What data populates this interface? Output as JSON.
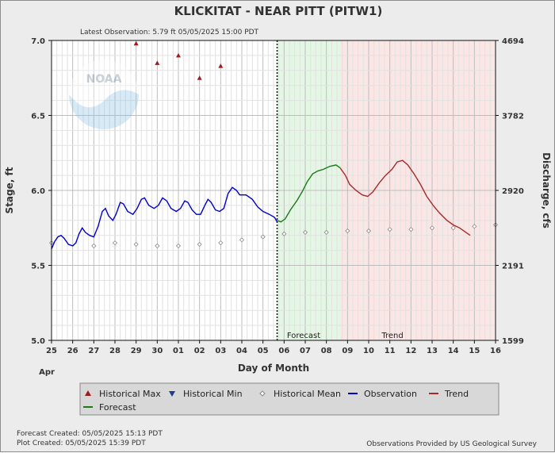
{
  "chart_data": {
    "type": "line",
    "title": "KLICKITAT - NEAR PITT  (PITW1)",
    "subtitle": "Latest Observation: 5.79 ft 05/05/2025 15:00 PDT",
    "xlabel": "Day of Month",
    "x_month_label": "Apr",
    "ylabel": "Stage, ft",
    "y2label": "Discharge, cfs",
    "ylim": [
      5.0,
      7.0
    ],
    "y_ticks": [
      "5.0",
      "5.5",
      "6.0",
      "6.5",
      "7.0"
    ],
    "y2_ticks": [
      "1599",
      "2191",
      "2920",
      "3782",
      "4694"
    ],
    "x_start_day": 25,
    "x_ticks": [
      "25",
      "26",
      "27",
      "28",
      "29",
      "30",
      "01",
      "02",
      "03",
      "04",
      "05",
      "06",
      "07",
      "08",
      "09",
      "10",
      "11",
      "12",
      "13",
      "14",
      "15",
      "16"
    ],
    "grid": true,
    "now_day": 5.67,
    "regions": [
      {
        "label": "Forecast",
        "start_day": 5.67,
        "end_day": 8.65,
        "color": "#e4f7e4"
      },
      {
        "label": "Trend",
        "start_day": 8.65,
        "end_day": 16.0,
        "color": "#fbe6e6"
      }
    ],
    "series": [
      {
        "name": "Historical Max",
        "kind": "marker-triangle-up",
        "color": "#9b1c1c",
        "points": [
          [
            4.0,
            6.98
          ],
          [
            5.0,
            6.85
          ],
          [
            6.0,
            6.9
          ],
          [
            7.0,
            6.75
          ],
          [
            8.0,
            6.83
          ]
        ]
      },
      {
        "name": "Historical Mean",
        "kind": "marker-diamond",
        "color": "#888888",
        "points": [
          [
            0.0,
            5.65
          ],
          [
            2.0,
            5.63
          ],
          [
            3.0,
            5.65
          ],
          [
            4.0,
            5.64
          ],
          [
            5.0,
            5.63
          ],
          [
            6.0,
            5.63
          ],
          [
            7.0,
            5.64
          ],
          [
            8.0,
            5.65
          ],
          [
            9.0,
            5.67
          ],
          [
            10.0,
            5.69
          ],
          [
            11.0,
            5.71
          ],
          [
            12.0,
            5.72
          ],
          [
            13.0,
            5.72
          ],
          [
            14.0,
            5.73
          ],
          [
            15.0,
            5.73
          ],
          [
            16.0,
            5.74
          ],
          [
            17.0,
            5.74
          ],
          [
            18.0,
            5.75
          ],
          [
            19.0,
            5.75
          ],
          [
            20.0,
            5.76
          ],
          [
            21.0,
            5.77
          ]
        ]
      },
      {
        "name": "Observation",
        "kind": "line",
        "color": "#0000cc",
        "points": [
          [
            0.0,
            5.61
          ],
          [
            0.15,
            5.66
          ],
          [
            0.3,
            5.69
          ],
          [
            0.45,
            5.7
          ],
          [
            0.6,
            5.68
          ],
          [
            0.8,
            5.64
          ],
          [
            1.0,
            5.63
          ],
          [
            1.15,
            5.65
          ],
          [
            1.3,
            5.71
          ],
          [
            1.45,
            5.75
          ],
          [
            1.6,
            5.72
          ],
          [
            1.8,
            5.7
          ],
          [
            2.0,
            5.69
          ],
          [
            2.2,
            5.76
          ],
          [
            2.4,
            5.86
          ],
          [
            2.55,
            5.88
          ],
          [
            2.7,
            5.83
          ],
          [
            2.9,
            5.8
          ],
          [
            3.05,
            5.84
          ],
          [
            3.25,
            5.92
          ],
          [
            3.4,
            5.91
          ],
          [
            3.6,
            5.86
          ],
          [
            3.85,
            5.84
          ],
          [
            4.05,
            5.88
          ],
          [
            4.25,
            5.94
          ],
          [
            4.4,
            5.95
          ],
          [
            4.6,
            5.9
          ],
          [
            4.85,
            5.88
          ],
          [
            5.05,
            5.9
          ],
          [
            5.25,
            5.95
          ],
          [
            5.45,
            5.93
          ],
          [
            5.65,
            5.88
          ],
          [
            5.9,
            5.86
          ],
          [
            6.1,
            5.88
          ],
          [
            6.3,
            5.93
          ],
          [
            6.45,
            5.92
          ],
          [
            6.65,
            5.87
          ],
          [
            6.85,
            5.84
          ],
          [
            7.05,
            5.84
          ],
          [
            7.25,
            5.9
          ],
          [
            7.4,
            5.94
          ],
          [
            7.55,
            5.92
          ],
          [
            7.75,
            5.87
          ],
          [
            7.95,
            5.86
          ],
          [
            8.15,
            5.88
          ],
          [
            8.35,
            5.98
          ],
          [
            8.55,
            6.02
          ],
          [
            8.75,
            6.0
          ],
          [
            8.9,
            5.97
          ],
          [
            9.2,
            5.97
          ],
          [
            9.5,
            5.94
          ],
          [
            9.75,
            5.89
          ],
          [
            10.0,
            5.86
          ],
          [
            10.3,
            5.84
          ],
          [
            10.55,
            5.82
          ],
          [
            10.67,
            5.79
          ]
        ]
      },
      {
        "name": "Forecast",
        "kind": "line",
        "color": "#1a7a1a",
        "points": [
          [
            10.67,
            5.8
          ],
          [
            10.85,
            5.79
          ],
          [
            11.05,
            5.81
          ],
          [
            11.3,
            5.87
          ],
          [
            11.6,
            5.93
          ],
          [
            11.85,
            5.99
          ],
          [
            12.1,
            6.06
          ],
          [
            12.35,
            6.11
          ],
          [
            12.6,
            6.13
          ],
          [
            12.85,
            6.14
          ],
          [
            13.15,
            6.16
          ],
          [
            13.45,
            6.17
          ],
          [
            13.65,
            6.15
          ]
        ]
      },
      {
        "name": "Trend",
        "kind": "line",
        "color": "#a52a2a",
        "points": [
          [
            13.65,
            6.15
          ],
          [
            13.9,
            6.1
          ],
          [
            14.1,
            6.04
          ],
          [
            14.4,
            6.0
          ],
          [
            14.7,
            5.97
          ],
          [
            14.95,
            5.96
          ],
          [
            15.2,
            5.99
          ],
          [
            15.5,
            6.05
          ],
          [
            15.8,
            6.1
          ],
          [
            16.1,
            6.14
          ],
          [
            16.35,
            6.19
          ],
          [
            16.6,
            6.2
          ],
          [
            16.85,
            6.17
          ],
          [
            17.15,
            6.11
          ],
          [
            17.45,
            6.04
          ],
          [
            17.75,
            5.96
          ],
          [
            18.05,
            5.9
          ],
          [
            18.35,
            5.85
          ],
          [
            18.7,
            5.8
          ],
          [
            19.0,
            5.77
          ],
          [
            19.3,
            5.75
          ],
          [
            19.6,
            5.72
          ],
          [
            19.8,
            5.7
          ]
        ]
      },
      {
        "name": "Historical Min",
        "kind": "marker-triangle-down",
        "color": "#1f3a93",
        "points": []
      }
    ],
    "legend_position": "bottom",
    "legend": [
      {
        "label": "Historical Max",
        "symbol": "triangle-up",
        "color": "#9b1c1c"
      },
      {
        "label": "Historical Min",
        "symbol": "triangle-down",
        "color": "#1f3a93"
      },
      {
        "label": "Historical Mean",
        "symbol": "diamond",
        "color": "#888888"
      },
      {
        "label": "Observation",
        "symbol": "line",
        "color": "#0000cc"
      },
      {
        "label": "Trend",
        "symbol": "line",
        "color": "#a52a2a"
      },
      {
        "label": "Forecast",
        "symbol": "line",
        "color": "#1a7a1a"
      }
    ],
    "logo_text": "NOAA"
  },
  "footer": {
    "forecast_created": "Forecast Created: 05/05/2025 15:13 PDT",
    "plot_created": "Plot Created: 05/05/2025 15:39 PDT",
    "source": "Observations Provided by US Geological Survey"
  }
}
